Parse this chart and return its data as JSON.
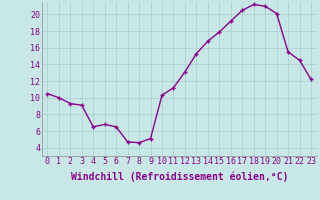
{
  "x": [
    0,
    1,
    2,
    3,
    4,
    5,
    6,
    7,
    8,
    9,
    10,
    11,
    12,
    13,
    14,
    15,
    16,
    17,
    18,
    19,
    20,
    21,
    22,
    23
  ],
  "y": [
    10.5,
    10.0,
    9.3,
    9.1,
    6.5,
    6.8,
    6.5,
    4.7,
    4.6,
    5.1,
    10.3,
    11.2,
    13.1,
    15.3,
    16.8,
    17.9,
    19.2,
    20.5,
    21.2,
    21.0,
    20.1,
    15.5,
    14.5,
    12.2
  ],
  "line_color": "#8B008B",
  "marker": "+",
  "marker_color": "#8B008B",
  "bg_color": "#c8e8e8",
  "grid_color": "#aacccc",
  "xlabel": "Windchill (Refroidissement éolien,°C)",
  "xlabel_color": "#8B008B",
  "tick_color": "#8B008B",
  "ylim": [
    3,
    21.5
  ],
  "xlim": [
    -0.5,
    23.5
  ],
  "yticks": [
    4,
    6,
    8,
    10,
    12,
    14,
    16,
    18,
    20
  ],
  "xticks": [
    0,
    1,
    2,
    3,
    4,
    5,
    6,
    7,
    8,
    9,
    10,
    11,
    12,
    13,
    14,
    15,
    16,
    17,
    18,
    19,
    20,
    21,
    22,
    23
  ],
  "xtick_labels": [
    "0",
    "1",
    "2",
    "3",
    "4",
    "5",
    "6",
    "7",
    "8",
    "9",
    "10",
    "11",
    "12",
    "13",
    "14",
    "15",
    "16",
    "17",
    "18",
    "19",
    "20",
    "21",
    "22",
    "23"
  ],
  "font_size_tick": 6,
  "font_size_xlabel": 7,
  "line_width": 1.0,
  "marker_size": 3.5
}
